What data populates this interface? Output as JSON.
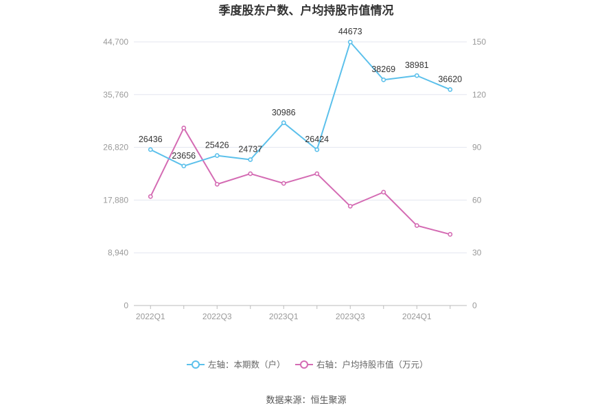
{
  "chart_data": {
    "type": "line",
    "title": "季度股东户数、户均持股市值情况",
    "x": [
      "2022Q1",
      "2022Q2",
      "2022Q3",
      "2022Q4",
      "2023Q1",
      "2023Q2",
      "2023Q3",
      "2023Q4",
      "2024Q1",
      "2024Q2"
    ],
    "x_tick_labels": [
      "2022Q1",
      "2022Q3",
      "2023Q1",
      "2023Q3",
      "2024Q1"
    ],
    "y_left": {
      "ticks": [
        "0",
        "8,940",
        "17,880",
        "26,820",
        "35,760",
        "44,700"
      ],
      "ylim": [
        0,
        44700
      ]
    },
    "y_right": {
      "ticks": [
        "0",
        "30",
        "60",
        "90",
        "120",
        "150"
      ],
      "ylim": [
        0,
        150
      ]
    },
    "grid": true,
    "legend_position": "bottom",
    "series": [
      {
        "name": "左轴：本期数（户）",
        "axis": "left",
        "color": "#5bc0eb",
        "values": [
          26436,
          23656,
          25426,
          24737,
          30986,
          26424,
          44673,
          38269,
          38981,
          36620
        ],
        "labels": [
          "26436",
          "23656",
          "25426",
          "24737",
          "30986",
          "26424",
          "44673",
          "38269",
          "38981",
          "36620"
        ]
      },
      {
        "name": "右轴：户均持股市值（万元）",
        "axis": "right",
        "color": "#d46bb3",
        "values": [
          62.0,
          101.0,
          69.0,
          75.0,
          69.5,
          75.0,
          56.5,
          64.5,
          45.5,
          40.5
        ]
      }
    ],
    "source": "数据来源：恒生聚源"
  }
}
